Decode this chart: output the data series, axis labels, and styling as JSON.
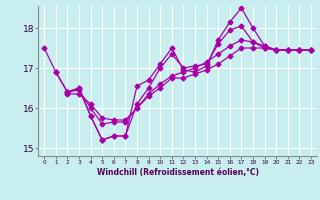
{
  "xlabel": "Windchill (Refroidissement éolien,°C)",
  "background_color": "#c8eef0",
  "line_color": "#aa00aa",
  "grid_color": "#ffffff",
  "xlim": [
    -0.5,
    23.5
  ],
  "ylim": [
    14.8,
    18.55
  ],
  "yticks": [
    15,
    16,
    17,
    18
  ],
  "xticks": [
    0,
    1,
    2,
    3,
    4,
    5,
    6,
    7,
    8,
    9,
    10,
    11,
    12,
    13,
    14,
    15,
    16,
    17,
    18,
    19,
    20,
    21,
    22,
    23
  ],
  "line1_x": [
    0,
    1,
    2,
    3,
    4,
    5,
    6,
    7,
    8,
    9,
    10,
    11,
    12,
    13,
    14,
    15,
    16,
    17,
    18,
    19,
    20,
    21,
    22,
    23
  ],
  "line1_y": [
    17.5,
    16.9,
    16.4,
    16.5,
    15.8,
    15.2,
    15.3,
    15.3,
    16.55,
    16.7,
    17.1,
    17.5,
    16.95,
    16.9,
    17.05,
    17.7,
    18.15,
    18.5,
    18.0,
    17.55,
    17.45,
    17.45,
    17.45,
    17.45
  ],
  "line2_x": [
    2,
    3,
    4,
    5,
    6,
    7,
    8,
    9,
    10,
    11,
    12,
    13,
    14,
    15,
    16,
    17,
    18,
    19,
    20,
    21,
    22,
    23
  ],
  "line2_y": [
    16.4,
    16.5,
    15.8,
    15.2,
    15.3,
    15.3,
    16.1,
    16.5,
    17.0,
    17.35,
    17.0,
    17.05,
    17.1,
    17.6,
    17.95,
    18.05,
    17.65,
    17.5,
    17.45,
    17.45,
    17.45,
    17.45
  ],
  "line3_x": [
    2,
    3,
    4,
    5,
    6,
    7,
    8,
    9,
    10,
    11,
    12,
    13,
    14,
    15,
    16,
    17,
    18,
    19,
    20,
    21,
    22,
    23
  ],
  "line3_y": [
    16.35,
    16.35,
    16.1,
    15.75,
    15.7,
    15.7,
    16.0,
    16.3,
    16.5,
    16.75,
    16.75,
    16.85,
    16.95,
    17.1,
    17.3,
    17.5,
    17.5,
    17.5,
    17.45,
    17.45,
    17.45,
    17.45
  ],
  "line4_x": [
    1,
    2,
    3,
    4,
    5,
    6,
    7,
    8,
    9,
    10,
    11,
    12,
    13,
    14,
    15,
    16,
    17,
    18,
    19,
    20,
    21,
    22,
    23
  ],
  "line4_y": [
    16.9,
    16.4,
    16.45,
    16.0,
    15.6,
    15.65,
    15.65,
    16.0,
    16.35,
    16.6,
    16.8,
    16.9,
    17.0,
    17.15,
    17.35,
    17.55,
    17.7,
    17.65,
    17.55,
    17.45,
    17.45,
    17.45,
    17.45
  ]
}
